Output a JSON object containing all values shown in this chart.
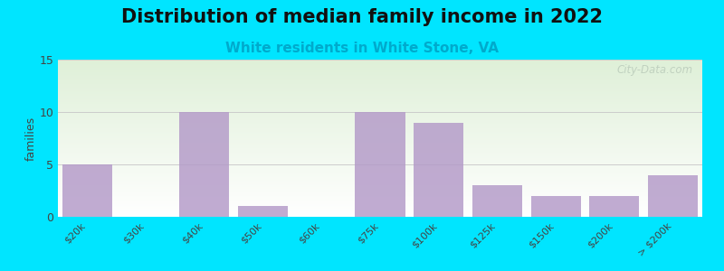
{
  "title": "Distribution of median family income in 2022",
  "subtitle": "White residents in White Stone, VA",
  "categories": [
    "$20k",
    "$30k",
    "$40k",
    "$50k",
    "$60k",
    "$75k",
    "$100k",
    "$125k",
    "$150k",
    "$200k",
    "> $200k"
  ],
  "values": [
    5,
    0,
    10,
    1,
    0,
    10,
    9,
    3,
    2,
    2,
    4
  ],
  "bar_color": "#b399c8",
  "bar_alpha": 0.82,
  "background_outer": "#00e5ff",
  "background_inner_top": "#dff0d8",
  "background_inner_bottom": "#ffffff",
  "ylabel": "families",
  "ylim": [
    0,
    15
  ],
  "yticks": [
    0,
    5,
    10,
    15
  ],
  "grid_color": "#cccccc",
  "title_fontsize": 15,
  "subtitle_fontsize": 11,
  "subtitle_color": "#00aacc",
  "watermark": "City-Data.com",
  "watermark_color": "#bbccbb",
  "tick_fontsize": 8
}
